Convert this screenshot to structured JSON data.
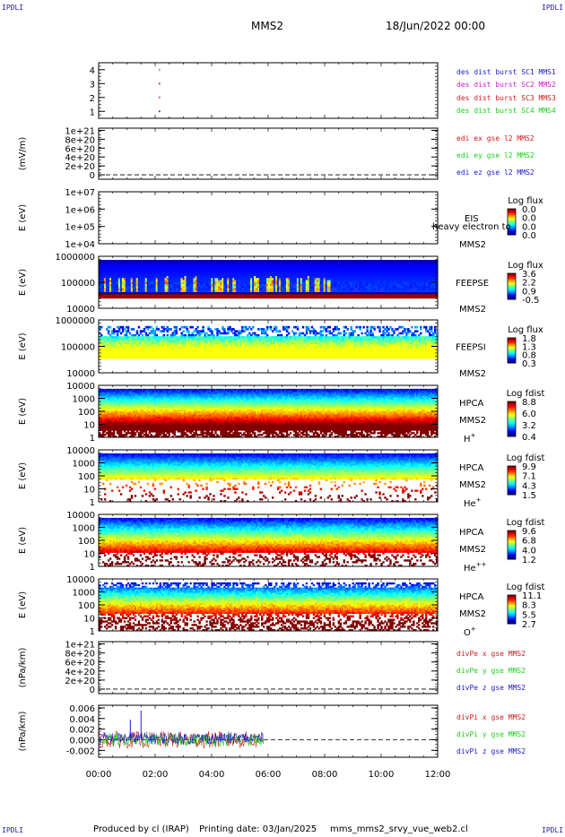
{
  "header": {
    "corner_tl": "IPDLI",
    "corner_tr": "IPDLI",
    "corner_bl": "IPDLI",
    "corner_br": "IPDLI",
    "spacecraft": "MMS2",
    "date": "18/Jun/2022 00:00"
  },
  "footer": {
    "produced": "Produced by cl (IRAP)",
    "printing": "Printing date: 03/Jan/2025",
    "file": "mms_mms2_srvy_vue_web2.cl"
  },
  "time_axis": {
    "ticks": [
      "00:00",
      "02:00",
      "04:00",
      "06:00",
      "08:00",
      "10:00",
      "12:00"
    ]
  },
  "colors": {
    "axis": "#000000",
    "blue": "#1a1ad0",
    "magenta": "#d01ad0",
    "red": "#d01a1a",
    "green": "#1ad01a"
  },
  "chart_data": [
    {
      "type": "scatter",
      "panel": "burst",
      "x_range_hours": [
        0,
        12
      ],
      "ylim": [
        0.5,
        4.5
      ],
      "y_ticks": [
        "1",
        "2",
        "3",
        "4"
      ],
      "legend": [
        {
          "text": "des dist burst SC1 MMS1",
          "color": "#1a1ad0"
        },
        {
          "text": "des dist burst SC2 MMS2",
          "color": "#d01ad0"
        },
        {
          "text": "des dist burst SC3 MMS3",
          "color": "#d01a1a"
        },
        {
          "text": "des dist burst SC4 MMS4",
          "color": "#1ad01a"
        }
      ],
      "points": [
        {
          "x": 2.13,
          "y": 1,
          "series": "SC1 MMS1"
        },
        {
          "x": 2.13,
          "y": 2,
          "series": "SC2 MMS2"
        },
        {
          "x": 2.13,
          "y": 3,
          "series": "SC3 MMS3"
        },
        {
          "x": 2.13,
          "y": 4,
          "series": "SC4 MMS4"
        }
      ]
    },
    {
      "type": "line",
      "panel": "edi",
      "ylabel": "(mV/m)",
      "y_ticks": [
        "1e+21",
        "8e+20",
        "6e+20",
        "4e+20",
        "2e+20",
        "0"
      ],
      "ylim": [
        -1e+20,
        1.05e+21
      ],
      "legend": [
        {
          "text": "edi ex gse l2 MMS2",
          "color": "#d01a1a"
        },
        {
          "text": "edi ey gse l2 MMS2",
          "color": "#1ad01a"
        },
        {
          "text": "edi ez gse l2 MMS2",
          "color": "#1a1ad0"
        }
      ],
      "zero_line": true
    },
    {
      "type": "heatmap",
      "panel": "eis",
      "ylabel": "E (eV)",
      "y_ticks": [
        "1e+07",
        "1e+06",
        "1e+05",
        "1e+04"
      ],
      "instrument": "EIS",
      "overlay_text": "heavy electron to",
      "spacecraft": "MMS2",
      "colorbar_title": "Log flux",
      "colorbar_ticks": [
        "0.0",
        "0.0",
        "0.0",
        "0.0"
      ]
    },
    {
      "type": "heatmap",
      "panel": "feepse",
      "ylabel": "E (eV)",
      "y_ticks": [
        "1000000",
        "100000",
        "10000"
      ],
      "instrument": "FEEPSE",
      "spacecraft": "MMS2",
      "colorbar_title": "Log flux",
      "colorbar_ticks": [
        "3.6",
        "2.2",
        "0.9",
        "-0.5"
      ]
    },
    {
      "type": "heatmap",
      "panel": "feepsi",
      "ylabel": "E (eV)",
      "y_ticks": [
        "1000000",
        "100000",
        "10000"
      ],
      "instrument": "FEEPSI",
      "spacecraft": "MMS2",
      "colorbar_title": "Log flux",
      "colorbar_ticks": [
        "1.8",
        "1.3",
        "0.8",
        "0.3"
      ]
    },
    {
      "type": "heatmap",
      "panel": "hpca_h",
      "ylabel": "E (eV)",
      "y_ticks": [
        "10000",
        "1000",
        "100",
        "10",
        "1"
      ],
      "instrument": "HPCA",
      "spacecraft": "MMS2",
      "species": "H",
      "species_sup": "+",
      "colorbar_title": "Log fdist",
      "colorbar_ticks": [
        "8.8",
        "6.0",
        "3.2",
        "0.4"
      ]
    },
    {
      "type": "heatmap",
      "panel": "hpca_he",
      "ylabel": "E (eV)",
      "y_ticks": [
        "10000",
        "1000",
        "100",
        "10",
        "1"
      ],
      "instrument": "HPCA",
      "spacecraft": "MMS2",
      "species": "He",
      "species_sup": "+",
      "colorbar_title": "Log fdist",
      "colorbar_ticks": [
        "9.9",
        "7.1",
        "4.3",
        "1.5"
      ]
    },
    {
      "type": "heatmap",
      "panel": "hpca_hepp",
      "ylabel": "E (eV)",
      "y_ticks": [
        "10000",
        "1000",
        "100",
        "10",
        "1"
      ],
      "instrument": "HPCA",
      "spacecraft": "MMS2",
      "species": "He",
      "species_sup": "++",
      "colorbar_title": "Log fdist",
      "colorbar_ticks": [
        "9.6",
        "6.8",
        "4.0",
        "1.2"
      ]
    },
    {
      "type": "heatmap",
      "panel": "hpca_o",
      "ylabel": "E (eV)",
      "y_ticks": [
        "10000",
        "1000",
        "100",
        "10",
        "1"
      ],
      "instrument": "HPCA",
      "spacecraft": "MMS2",
      "species": "O",
      "species_sup": "+",
      "colorbar_title": "Log fdist",
      "colorbar_ticks": [
        "11.1",
        "8.3",
        "5.5",
        "2.7"
      ]
    },
    {
      "type": "line",
      "panel": "divpe",
      "ylabel": "(nPa/km)",
      "y_ticks": [
        "1e+21",
        "8e+20",
        "6e+20",
        "4e+20",
        "2e+20",
        "0"
      ],
      "ylim": [
        -1e+20,
        1.05e+21
      ],
      "legend": [
        {
          "text": "divPe x gse MMS2",
          "color": "#d01a1a"
        },
        {
          "text": "divPe y gse MMS2",
          "color": "#1ad01a"
        },
        {
          "text": "divPe z gse MMS2",
          "color": "#1a1ad0"
        }
      ],
      "zero_line": true
    },
    {
      "type": "line",
      "panel": "divpi",
      "ylabel": "(nPa/km)",
      "y_ticks": [
        "0.006",
        "0.004",
        "0.002",
        "0.000",
        "-0.002"
      ],
      "y_tick_values": [
        0.006,
        0.004,
        0.002,
        0.0,
        -0.002
      ],
      "ylim": [
        -0.0033,
        0.0065
      ],
      "data_end_hours": 5.83,
      "spikes": [
        {
          "x": 1.5,
          "y": 0.0055
        },
        {
          "x": 1.12,
          "y": 0.0038
        }
      ],
      "legend": [
        {
          "text": "divPi x gse MMS2",
          "color": "#d01a1a"
        },
        {
          "text": "divPi y gse MMS2",
          "color": "#1ad01a"
        },
        {
          "text": "divPi z gse MMS2",
          "color": "#1a1ad0"
        }
      ],
      "zero_line": true
    }
  ]
}
